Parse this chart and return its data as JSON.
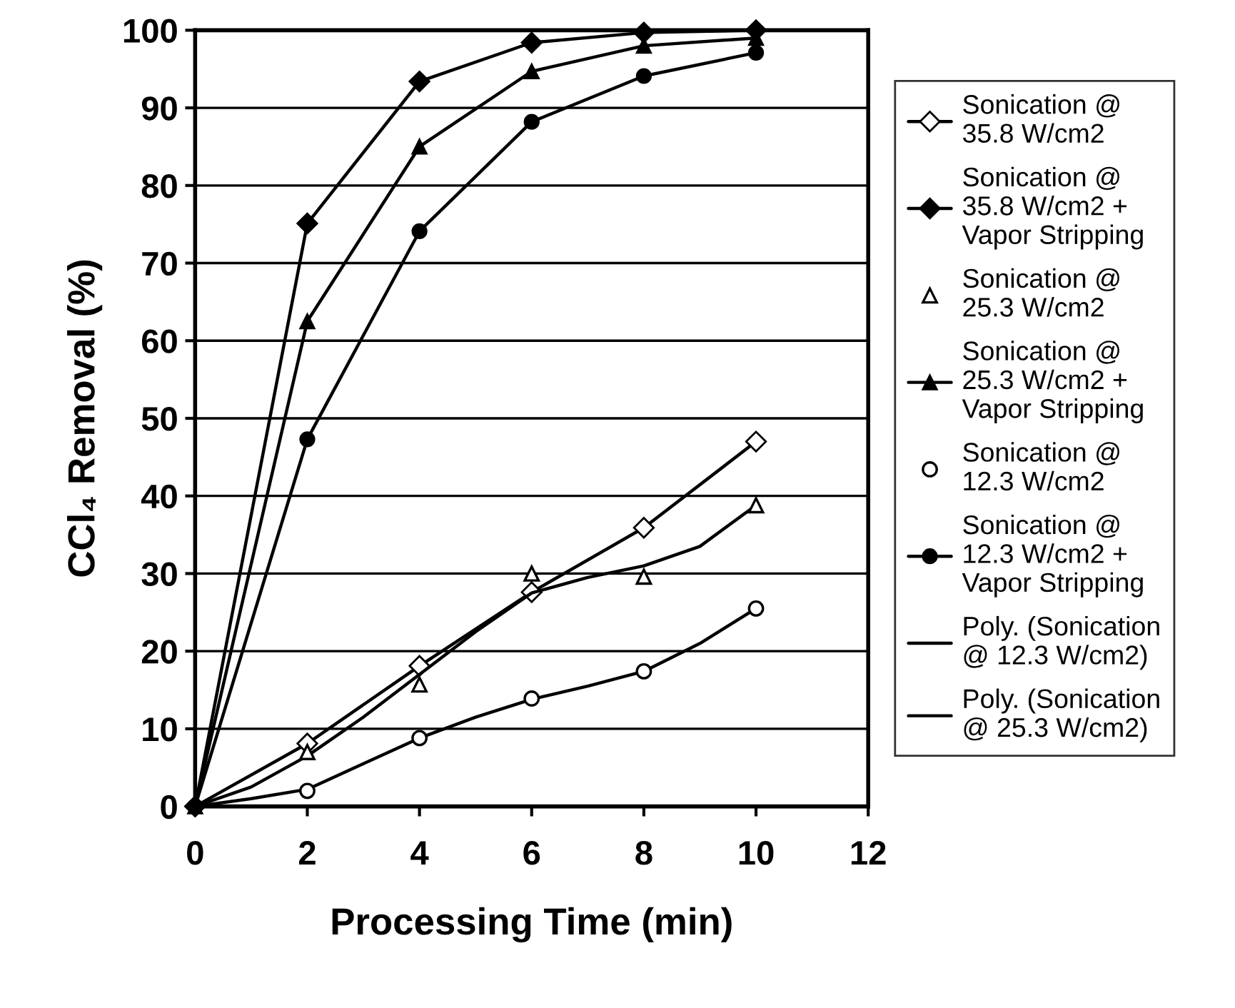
{
  "chart_data": {
    "type": "line",
    "xlabel": "Processing Time (min)",
    "ylabel": "CCl₄ Removal (%)",
    "x": [
      0,
      2,
      4,
      6,
      8,
      10
    ],
    "xlim": [
      0,
      12
    ],
    "xticks": [
      0,
      2,
      4,
      6,
      8,
      10,
      12
    ],
    "ylim": [
      0,
      100
    ],
    "yticks": [
      0,
      10,
      20,
      30,
      40,
      50,
      60,
      70,
      80,
      90,
      100
    ],
    "grid": "y",
    "legend": "right",
    "series": [
      {
        "name": "Sonication @ 35.8 W/cm2",
        "color": "#ffffff",
        "marker": "diamond",
        "line_style": "solid",
        "values": [
          0,
          8.1,
          18.1,
          27.6,
          35.9,
          47
        ]
      },
      {
        "name": "Sonication @ 35.8 W/cm2 + Vapor Stripping",
        "color": "#000000",
        "marker": "diamond",
        "line_style": "solid",
        "values": [
          0,
          75.1,
          93.4,
          98.4,
          99.7,
          100
        ]
      },
      {
        "name": "Sonication @ 25.3 W/cm2",
        "color": "#ffffff",
        "type": "scatter",
        "marker": "triangle",
        "values": [
          null,
          7,
          15.7,
          30,
          29.6,
          38.8
        ]
      },
      {
        "name": "Sonication @ 25.3 W/cm2 + Vapor Stripping",
        "color": "#000000",
        "marker": "triangle",
        "line_style": "solid",
        "values": [
          0,
          62.5,
          85,
          94.7,
          98,
          99
        ]
      },
      {
        "name": "Sonication @ 12.3 W/cm2",
        "color": "#ffffff",
        "type": "scatter",
        "marker": "circle",
        "values": [
          null,
          2,
          8.8,
          13.9,
          17.4,
          25.5
        ]
      },
      {
        "name": "Sonication @ 12.3 W/cm2 + Vapor Stripping",
        "color": "#000000",
        "marker": "circle",
        "line_style": "solid",
        "values": [
          0,
          47.3,
          74.1,
          88.2,
          94.1,
          97.1
        ]
      },
      {
        "name": "Poly. (Sonication @ 12.3 W/cm2)",
        "color": "#000000",
        "marker": "none",
        "line_style": "solid",
        "x": [
          0,
          1,
          2,
          3,
          4,
          5,
          6,
          7,
          8,
          9,
          10
        ],
        "values": [
          0,
          1,
          2.2,
          5.5,
          8.8,
          11.5,
          13.8,
          15.5,
          17.4,
          21,
          25.5
        ]
      },
      {
        "name": "Poly. (Sonication @ 25.3 W/cm2)",
        "color": "#000000",
        "marker": "none",
        "line_style": "solid",
        "x": [
          0,
          1,
          2,
          3,
          4,
          5,
          6,
          7,
          8,
          9,
          10
        ],
        "values": [
          0,
          2.5,
          6.5,
          11.5,
          17,
          22.5,
          27.5,
          29.5,
          31,
          33.5,
          38.8
        ]
      }
    ]
  }
}
